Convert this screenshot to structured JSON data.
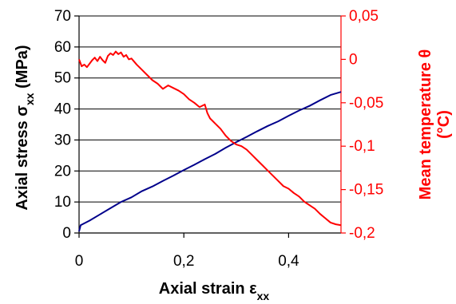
{
  "chart_data": {
    "type": "line",
    "xlabel": "Axial strain ε",
    "xlabel_sub": "xx",
    "ylabel_left": "Axial stress σ",
    "ylabel_left_sub": "xx",
    "ylabel_left_unit": " (MPa)",
    "ylabel_right_line1": "Mean temperature θ",
    "ylabel_right_line2": "(°C)",
    "xlim": [
      0,
      0.5
    ],
    "ylim_left": [
      0,
      70
    ],
    "ylim_right": [
      -0.2,
      0.05
    ],
    "x_ticks": [
      "0",
      "0,2",
      "0,4"
    ],
    "x_tick_values": [
      0,
      0.2,
      0.4
    ],
    "y_left_ticks": [
      "0",
      "10",
      "20",
      "30",
      "40",
      "50",
      "60",
      "70"
    ],
    "y_left_tick_values": [
      0,
      10,
      20,
      30,
      40,
      50,
      60,
      70
    ],
    "y_right_ticks": [
      "0,05",
      "0",
      "-0,05",
      "-0,1",
      "-0,15",
      "-0,2"
    ],
    "y_right_tick_values": [
      0.05,
      0,
      -0.05,
      -0.1,
      -0.15,
      -0.2
    ],
    "grid": "horizontal",
    "legend": "none",
    "series": [
      {
        "axis": "left",
        "color": "#00008b",
        "x": [
          0.0,
          0.003,
          0.02,
          0.04,
          0.06,
          0.08,
          0.1,
          0.12,
          0.14,
          0.16,
          0.18,
          0.2,
          0.22,
          0.24,
          0.26,
          0.28,
          0.3,
          0.32,
          0.34,
          0.36,
          0.38,
          0.4,
          0.42,
          0.44,
          0.46,
          0.48,
          0.5
        ],
        "y": [
          0.5,
          2.5,
          4.0,
          6.0,
          8.0,
          10.0,
          11.5,
          13.5,
          15.0,
          16.8,
          18.5,
          20.3,
          22.0,
          23.8,
          25.5,
          27.5,
          29.3,
          31.0,
          32.8,
          34.5,
          36.0,
          37.8,
          39.5,
          41.0,
          42.8,
          44.5,
          45.5
        ]
      },
      {
        "axis": "right",
        "color": "#ff0000",
        "x": [
          0.0,
          0.005,
          0.01,
          0.015,
          0.02,
          0.025,
          0.03,
          0.035,
          0.04,
          0.045,
          0.05,
          0.055,
          0.06,
          0.065,
          0.07,
          0.075,
          0.08,
          0.085,
          0.09,
          0.095,
          0.1,
          0.11,
          0.12,
          0.13,
          0.14,
          0.15,
          0.16,
          0.17,
          0.18,
          0.19,
          0.2,
          0.21,
          0.22,
          0.23,
          0.24,
          0.245,
          0.25,
          0.26,
          0.27,
          0.28,
          0.29,
          0.3,
          0.31,
          0.32,
          0.33,
          0.34,
          0.35,
          0.36,
          0.37,
          0.38,
          0.39,
          0.4,
          0.41,
          0.42,
          0.43,
          0.44,
          0.45,
          0.46,
          0.47,
          0.48,
          0.49,
          0.5
        ],
        "y": [
          0.0,
          -0.008,
          -0.006,
          -0.009,
          -0.005,
          -0.001,
          0.002,
          -0.002,
          0.003,
          -0.001,
          -0.004,
          0.004,
          0.007,
          0.005,
          0.009,
          0.006,
          0.008,
          0.003,
          0.005,
          0.0,
          0.001,
          -0.006,
          -0.012,
          -0.018,
          -0.024,
          -0.028,
          -0.034,
          -0.03,
          -0.033,
          -0.036,
          -0.04,
          -0.046,
          -0.05,
          -0.055,
          -0.052,
          -0.062,
          -0.068,
          -0.074,
          -0.08,
          -0.088,
          -0.094,
          -0.098,
          -0.1,
          -0.104,
          -0.11,
          -0.116,
          -0.122,
          -0.128,
          -0.134,
          -0.14,
          -0.146,
          -0.149,
          -0.154,
          -0.158,
          -0.164,
          -0.168,
          -0.172,
          -0.178,
          -0.183,
          -0.188,
          -0.19,
          -0.191
        ]
      }
    ]
  }
}
